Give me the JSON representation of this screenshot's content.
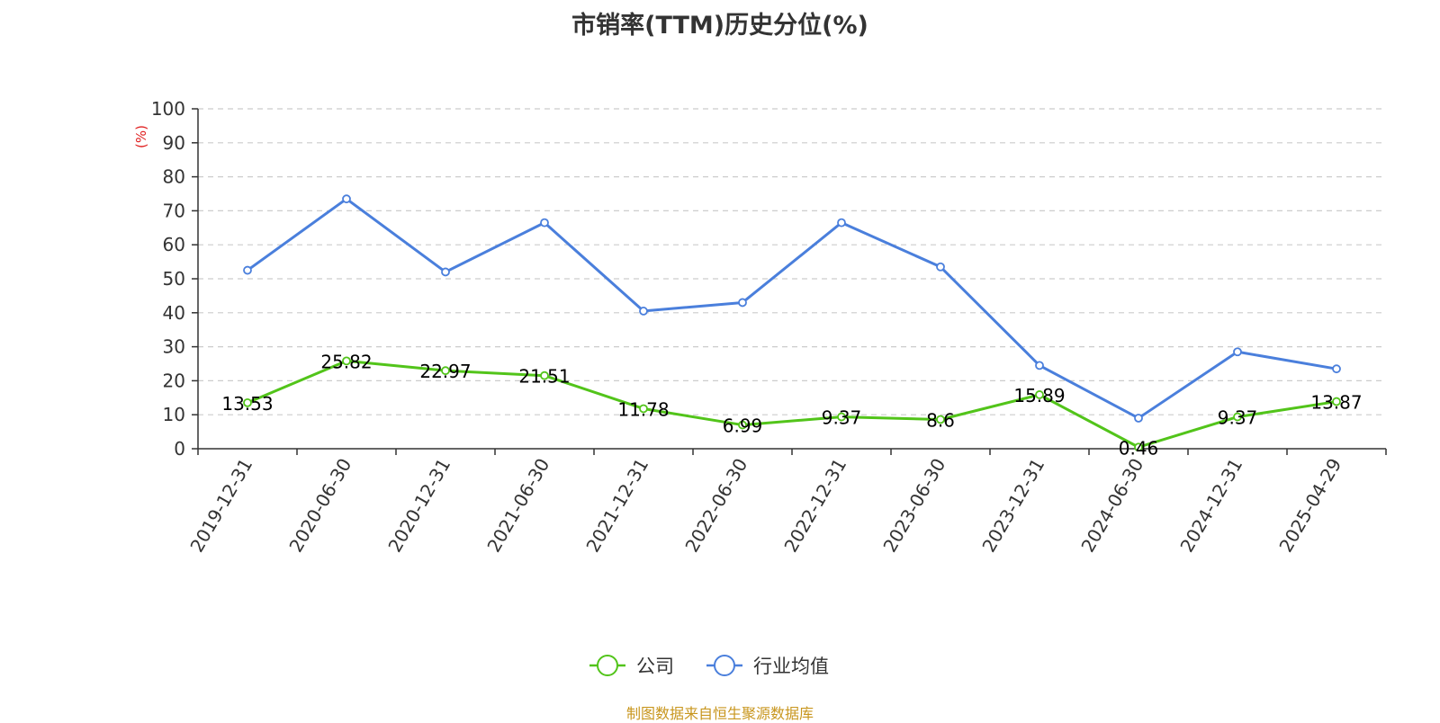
{
  "chart_data": {
    "type": "line",
    "title": "市销率(TTM)历史分位(%)",
    "ylabel": "(%)",
    "xlabel": "",
    "ylim": [
      0,
      100
    ],
    "yticks": [
      0,
      10,
      20,
      30,
      40,
      50,
      60,
      70,
      80,
      90,
      100
    ],
    "grid": true,
    "legend_position": "bottom",
    "categories": [
      "2019-12-31",
      "2020-06-30",
      "2020-12-31",
      "2021-06-30",
      "2021-12-31",
      "2022-06-30",
      "2022-12-31",
      "2023-06-30",
      "2023-12-31",
      "2024-06-30",
      "2024-12-31",
      "2025-04-29"
    ],
    "series": [
      {
        "name": "公司",
        "color": "#52c41a",
        "values": [
          13.53,
          25.82,
          22.97,
          21.51,
          11.78,
          6.99,
          9.37,
          8.6,
          15.89,
          0.46,
          9.37,
          13.87
        ],
        "labels": [
          "13.53",
          "25.82",
          "22.97",
          "21.51",
          "11.78",
          "6.99",
          "9.37",
          "8.6",
          "15.89",
          "0.46",
          "9.37",
          "13.87"
        ]
      },
      {
        "name": "行业均值",
        "color": "#4a7fdc",
        "values": [
          52.5,
          73.5,
          52.0,
          66.5,
          40.5,
          43.0,
          66.5,
          53.5,
          24.5,
          9.0,
          28.5,
          23.5
        ]
      }
    ]
  },
  "colors": {
    "unit_label": "#e02020",
    "source_note": "#c8961e",
    "axis": "#333333",
    "grid": "#cccccc"
  },
  "source_note": "制图数据来自恒生聚源数据库"
}
